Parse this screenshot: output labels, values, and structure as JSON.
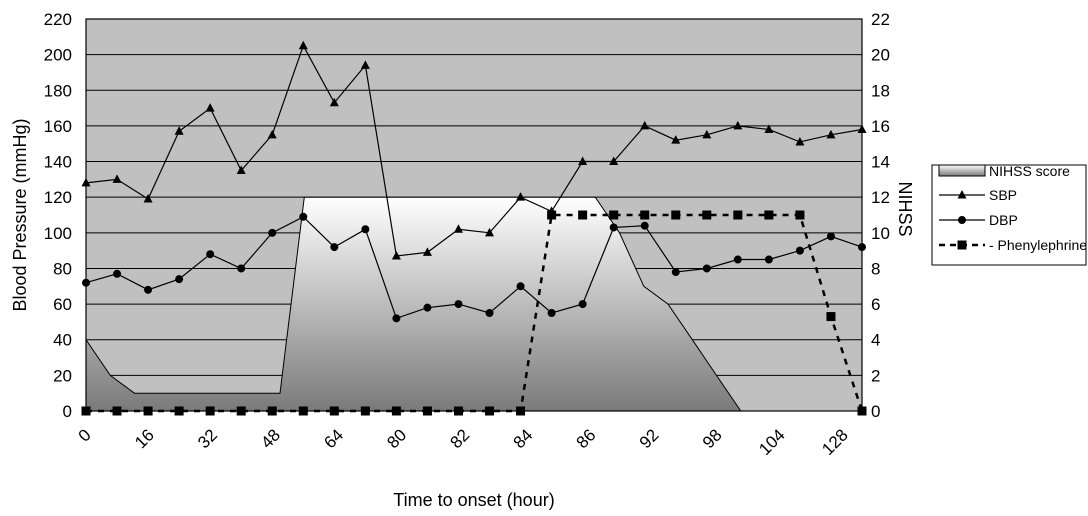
{
  "chart_data": {
    "type": "line",
    "xlabel": "Time to onset (hour)",
    "ylabel": "Blood Pressure (mmHg)",
    "y2label": "NIHSS",
    "x_tick_labels": [
      "0",
      "16",
      "32",
      "48",
      "64",
      "80",
      "82",
      "84",
      "86",
      "92",
      "98",
      "104",
      "128"
    ],
    "ylim": [
      0,
      220
    ],
    "y_ticks": [
      0,
      20,
      40,
      60,
      80,
      100,
      120,
      140,
      160,
      180,
      200,
      220
    ],
    "y2lim": [
      0,
      22
    ],
    "y2_ticks": [
      0,
      2,
      4,
      6,
      8,
      10,
      12,
      14,
      16,
      18,
      20,
      22
    ],
    "grid": true,
    "legend_position": "right",
    "series": [
      {
        "name": "NIHSS score",
        "kind": "area",
        "axis": "right",
        "values": [
          4,
          2,
          1,
          1,
          1,
          1,
          1,
          1,
          1,
          12,
          12,
          12,
          12,
          12,
          12,
          12,
          12,
          12,
          12,
          12,
          12,
          12,
          10,
          7,
          6,
          4,
          2,
          0,
          0,
          0,
          0,
          0,
          0
        ]
      },
      {
        "name": "SBP",
        "kind": "line",
        "marker": "triangle",
        "axis": "left",
        "values": [
          128,
          130,
          119,
          157,
          170,
          135,
          155,
          205,
          173,
          194,
          87,
          89,
          102,
          100,
          120,
          112,
          140,
          140,
          160,
          152,
          155,
          160,
          158,
          151,
          155,
          158
        ]
      },
      {
        "name": "DBP",
        "kind": "line",
        "marker": "circle",
        "axis": "left",
        "values": [
          72,
          77,
          68,
          74,
          88,
          80,
          100,
          109,
          92,
          102,
          52,
          58,
          60,
          55,
          70,
          55,
          60,
          103,
          104,
          78,
          80,
          85,
          85,
          90,
          98,
          92
        ]
      },
      {
        "name": "Phenylephrine",
        "kind": "dashed-line",
        "marker": "square",
        "axis": "left",
        "values": [
          0,
          0,
          0,
          0,
          0,
          0,
          0,
          0,
          0,
          0,
          0,
          0,
          0,
          0,
          0,
          110,
          110,
          110,
          110,
          110,
          110,
          110,
          110,
          110,
          53,
          0
        ]
      }
    ]
  },
  "colors": {
    "plot_background": "#c0c0c0",
    "area_top": "#ffffff",
    "area_bottom": "#808080",
    "line": "#000000"
  }
}
